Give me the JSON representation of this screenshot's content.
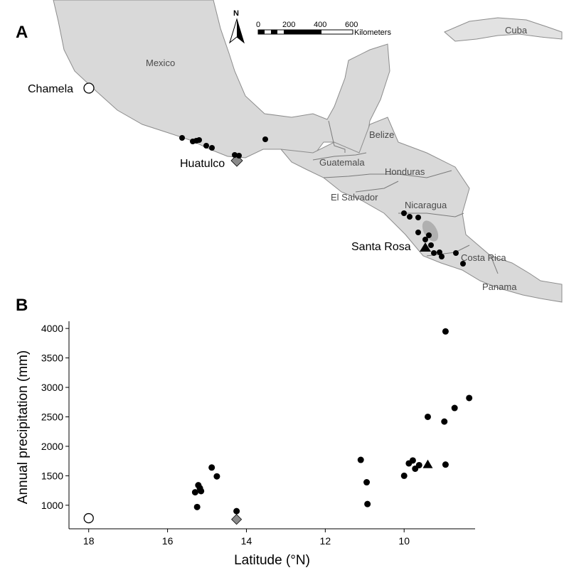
{
  "panel_a": {
    "letter": "A",
    "north_label": "N",
    "scale": {
      "ticks": [
        "0",
        "200",
        "400",
        "600"
      ],
      "unit": "Kilometers"
    },
    "countries": {
      "mexico": "Mexico",
      "cuba": "Cuba",
      "belize": "Belize",
      "guatemala": "Guatemala",
      "honduras": "Honduras",
      "el_salvador": "El Salvador",
      "nicaragua": "Nicaragua",
      "costa_rica": "Costa Rica",
      "panama": "Panama"
    },
    "sites": {
      "chamela": "Chamela",
      "huatulco": "Huatulco",
      "santa_rosa": "Santa Rosa"
    }
  },
  "chart_data": {
    "type": "scatter",
    "panel_letter": "B",
    "title": "",
    "xlabel": "Latitude (°N)",
    "ylabel": "Annual precipitation (mm)",
    "xlim": [
      18.5,
      8.2
    ],
    "x_reversed": true,
    "ylim": [
      600,
      4050
    ],
    "x_ticks": [
      18,
      16,
      14,
      12,
      10
    ],
    "y_ticks": [
      1000,
      1500,
      2000,
      2500,
      3000,
      3500,
      4000
    ],
    "series": [
      {
        "marker": "circle-filled",
        "color": "#000000",
        "points": [
          {
            "x": 15.3,
            "y": 1220
          },
          {
            "x": 15.25,
            "y": 970
          },
          {
            "x": 15.22,
            "y": 1340
          },
          {
            "x": 15.18,
            "y": 1290
          },
          {
            "x": 15.15,
            "y": 1240
          },
          {
            "x": 14.88,
            "y": 1640
          },
          {
            "x": 14.75,
            "y": 1490
          },
          {
            "x": 14.25,
            "y": 900
          },
          {
            "x": 11.1,
            "y": 1770
          },
          {
            "x": 10.95,
            "y": 1390
          },
          {
            "x": 10.93,
            "y": 1020
          },
          {
            "x": 10.0,
            "y": 1500
          },
          {
            "x": 9.88,
            "y": 1710
          },
          {
            "x": 9.78,
            "y": 1760
          },
          {
            "x": 9.72,
            "y": 1620
          },
          {
            "x": 9.62,
            "y": 1680
          },
          {
            "x": 9.4,
            "y": 2500
          },
          {
            "x": 8.95,
            "y": 3950
          },
          {
            "x": 8.98,
            "y": 2420
          },
          {
            "x": 8.95,
            "y": 1690
          },
          {
            "x": 8.72,
            "y": 2650
          },
          {
            "x": 8.35,
            "y": 2820
          }
        ]
      },
      {
        "marker": "circle-open",
        "color": "#000000",
        "points": [
          {
            "x": 18.0,
            "y": 780
          }
        ]
      },
      {
        "marker": "diamond",
        "color": "#8a8a8a",
        "points": [
          {
            "x": 14.25,
            "y": 760
          }
        ]
      },
      {
        "marker": "triangle",
        "color": "#000000",
        "points": [
          {
            "x": 9.4,
            "y": 1690
          }
        ]
      }
    ]
  }
}
